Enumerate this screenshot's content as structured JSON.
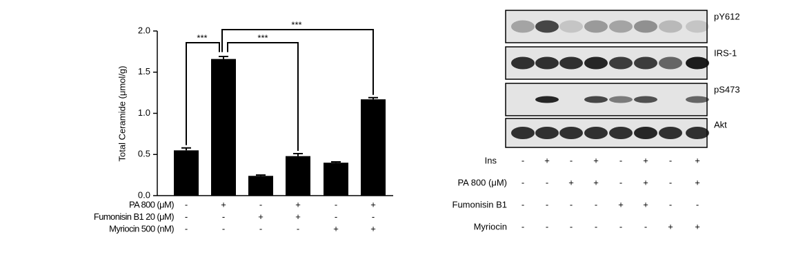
{
  "chart_data": {
    "type": "bar",
    "y_label": "Total Ceramide (μmol/g)",
    "categories": [
      null,
      null,
      null,
      null,
      null,
      null
    ],
    "values": [
      0.55,
      1.66,
      0.24,
      0.48,
      0.4,
      1.17
    ],
    "errors": [
      0.03,
      0.03,
      0.01,
      0.03,
      0.01,
      0.02
    ],
    "color": "#000000",
    "ylim": [
      0,
      2
    ],
    "yticks": [
      {
        "value": 0,
        "label": "0.0"
      },
      0.5,
      {
        "value": 1,
        "label": "1.0"
      },
      1.5,
      {
        "value": 2,
        "label": "2.0"
      }
    ],
    "annotations": [
      "***",
      "***",
      "***"
    ],
    "conditions": [
      {
        "label": "PA 800 (μM)",
        "signs": [
          "-",
          "+",
          "-",
          "+",
          "-",
          "+"
        ]
      },
      {
        "label": "Fumonisin B1 20 (μM)",
        "signs": [
          "-",
          "-",
          "+",
          "+",
          "-",
          "-"
        ]
      },
      {
        "label": "Myriocin 500 (nM)",
        "signs": [
          "-",
          "-",
          "-",
          "-",
          "+",
          "+"
        ]
      }
    ]
  },
  "blot": {
    "bands": [
      "pY612",
      "IRS-1",
      "pS473",
      "Akt"
    ],
    "conditions": [
      {
        "label": "Ins",
        "signs": [
          "-",
          "+",
          "-",
          "+",
          "-",
          "+",
          "-",
          "+"
        ]
      },
      {
        "label": "PA 800 (μM)",
        "signs": [
          "-",
          "-",
          "+",
          "+",
          "-",
          "+",
          "-",
          "+"
        ]
      },
      {
        "label": "Fumonisin B1",
        "signs": [
          "-",
          "-",
          "-",
          "-",
          "+",
          "+",
          "-",
          "-"
        ]
      },
      {
        "label": "Myriocin",
        "signs": [
          "-",
          "-",
          "-",
          "-",
          "-",
          "-",
          "+",
          "+"
        ]
      }
    ]
  }
}
